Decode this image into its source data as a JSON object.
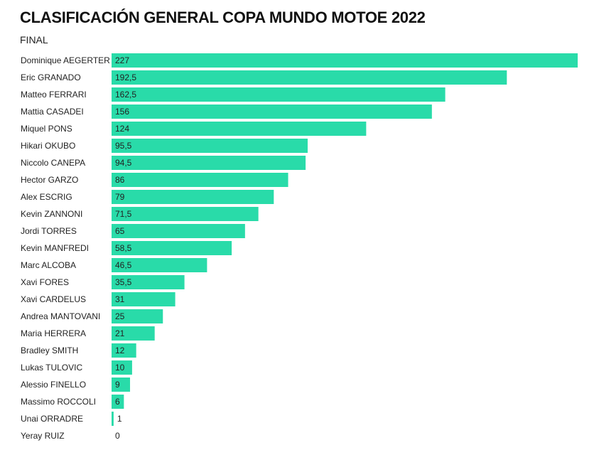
{
  "colors": {
    "bar": "#29dba9",
    "text": "#222222",
    "background": "#ffffff"
  },
  "chart_data": {
    "type": "bar",
    "orientation": "horizontal",
    "title": "CLASIFICACIÓN GENERAL COPA MUNDO MOTOE 2022",
    "subtitle": "FINAL",
    "xlabel": "",
    "ylabel": "",
    "grid": false,
    "legend": "none",
    "xlim": [
      0,
      227
    ],
    "value_labels_inside": true,
    "categories": [
      "Dominique AEGERTER",
      "Eric GRANADO",
      "Matteo FERRARI",
      "Mattia CASADEI",
      "Miquel PONS",
      "Hikari OKUBO",
      "Niccolo CANEPA",
      "Hector GARZO",
      "Alex ESCRIG",
      "Kevin ZANNONI",
      "Jordi TORRES",
      "Kevin MANFREDI",
      "Marc ALCOBA",
      "Xavi FORES",
      "Xavi CARDELUS",
      "Andrea MANTOVANI",
      "Maria HERRERA",
      "Bradley SMITH",
      "Lukas TULOVIC",
      "Alessio FINELLO",
      "Massimo ROCCOLI",
      "Unai ORRADRE",
      "Yeray RUIZ"
    ],
    "values": [
      227,
      192.5,
      162.5,
      156,
      124,
      95.5,
      94.5,
      86,
      79,
      71.5,
      65,
      58.5,
      46.5,
      35.5,
      31,
      25,
      21,
      12,
      10,
      9,
      6,
      1,
      0
    ],
    "value_labels": [
      "227",
      "192,5",
      "162,5",
      "156",
      "124",
      "95,5",
      "94,5",
      "86",
      "79",
      "71,5",
      "65",
      "58,5",
      "46,5",
      "35,5",
      "31",
      "25",
      "21",
      "12",
      "10",
      "9",
      "6",
      "1",
      "0"
    ]
  }
}
